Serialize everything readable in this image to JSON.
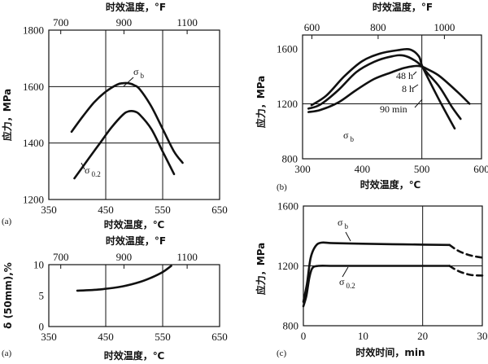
{
  "chart_data": [
    {
      "id": "a_top",
      "panel_label": "(a)",
      "type": "line",
      "xlabel": "时效温度，℃",
      "x2label": "时效温度，°F",
      "ylabel": "应力，MPa",
      "xlim": [
        350,
        650
      ],
      "xticks": [
        "350",
        "450",
        "550",
        "650"
      ],
      "x2ticks": [
        {
          "label": "700",
          "x": 371
        },
        {
          "label": "900",
          "x": 482
        },
        {
          "label": "1100",
          "x": 593
        }
      ],
      "ylim": [
        1200,
        1800
      ],
      "yticks": [
        "1200",
        "1400",
        "1600",
        "1800"
      ],
      "hgrid": [
        1400,
        1600
      ],
      "vgrid": [
        450,
        550
      ],
      "series": [
        {
          "name": "σ b",
          "name_main": "σ",
          "name_sub": "b",
          "x": [
            390,
            410,
            430,
            450,
            470,
            480,
            490,
            500,
            510,
            530,
            550,
            570,
            585
          ],
          "y": [
            1440,
            1495,
            1545,
            1582,
            1607,
            1612,
            1612,
            1605,
            1590,
            1530,
            1450,
            1370,
            1330
          ]
        },
        {
          "name": "σ 0.2",
          "name_main": "σ",
          "name_sub": "0.2",
          "x": [
            395,
            420,
            440,
            460,
            480,
            490,
            500,
            510,
            530,
            550,
            570
          ],
          "y": [
            1275,
            1345,
            1400,
            1455,
            1500,
            1512,
            1512,
            1500,
            1450,
            1370,
            1290
          ]
        }
      ]
    },
    {
      "id": "b",
      "panel_label": "(b)",
      "type": "line",
      "xlabel": "时效温度，℃",
      "x2label": "时效温度，°F",
      "ylabel": "应力，MPa",
      "xlim": [
        300,
        600
      ],
      "xticks": [
        "300",
        "400",
        "500",
        "600"
      ],
      "x2ticks": [
        {
          "label": "600",
          "x": 315.6
        },
        {
          "label": "800",
          "x": 426.7
        },
        {
          "label": "1000",
          "x": 537.8
        }
      ],
      "ylim": [
        800,
        1700
      ],
      "yticks": [
        "800",
        "1200",
        "1600"
      ],
      "hgrid": [
        1200
      ],
      "vgrid": [
        500
      ],
      "annotation": {
        "main": "σ",
        "sub": "b"
      },
      "series": [
        {
          "name": "90 min",
          "x": [
            310,
            330,
            360,
            390,
            420,
            450,
            470,
            490,
            500,
            510,
            530,
            560,
            580
          ],
          "y": [
            1140,
            1155,
            1210,
            1300,
            1380,
            1430,
            1460,
            1475,
            1470,
            1450,
            1400,
            1285,
            1200
          ]
        },
        {
          "name": "8 h",
          "x": [
            310,
            330,
            360,
            390,
            420,
            450,
            470,
            490,
            500,
            510,
            530,
            550,
            565
          ],
          "y": [
            1165,
            1195,
            1300,
            1430,
            1505,
            1545,
            1550,
            1510,
            1470,
            1420,
            1320,
            1180,
            1090
          ]
        },
        {
          "name": "48 h",
          "x": [
            315,
            340,
            370,
            400,
            430,
            460,
            480,
            495,
            500,
            510,
            530,
            555
          ],
          "y": [
            1190,
            1260,
            1400,
            1510,
            1565,
            1590,
            1595,
            1545,
            1480,
            1390,
            1220,
            1020
          ]
        }
      ]
    },
    {
      "id": "a_bottom",
      "panel_label": "(a)",
      "type": "line",
      "xlabel": "时效温度，℃",
      "x2label": "时效温度，°F",
      "ylabel": "δ (50mm),%",
      "xlim": [
        350,
        650
      ],
      "xticks": [
        "350",
        "450",
        "550",
        "650"
      ],
      "x2ticks": [
        {
          "label": "700",
          "x": 371
        },
        {
          "label": "900",
          "x": 482
        },
        {
          "label": "1100",
          "x": 593
        }
      ],
      "ylim": [
        0,
        10
      ],
      "yticks": [
        "0",
        "5",
        "10"
      ],
      "vgrid": [
        450,
        550
      ],
      "series": [
        {
          "name": "δ",
          "x": [
            400,
            440,
            480,
            510,
            530,
            550,
            565
          ],
          "y": [
            5.8,
            6.0,
            6.5,
            7.2,
            7.9,
            8.8,
            9.8
          ]
        }
      ]
    },
    {
      "id": "c",
      "panel_label": "(c)",
      "type": "line",
      "xlabel": "时效时间，min",
      "ylabel": "应力，MPa",
      "xlim": [
        0,
        30
      ],
      "xticks": [
        "0",
        "10",
        "20",
        "30"
      ],
      "ylim": [
        800,
        1600
      ],
      "yticks": [
        "800",
        "1200",
        "1600"
      ],
      "hgrid": [
        1200
      ],
      "vgrid": [
        20
      ],
      "series": [
        {
          "name": "σ b",
          "name_main": "σ",
          "name_sub": "b",
          "x": [
            0,
            0.6,
            1.2,
            2,
            3,
            5,
            10,
            15,
            20,
            24.5
          ],
          "y": [
            960,
            1080,
            1250,
            1330,
            1355,
            1352,
            1348,
            1345,
            1342,
            1340
          ],
          "dashed": {
            "x": [
              24.5,
              26,
              28,
              30
            ],
            "y": [
              1340,
              1300,
              1270,
              1255
            ]
          }
        },
        {
          "name": "σ 0.2",
          "name_main": "σ",
          "name_sub": "0.2",
          "x": [
            0,
            0.5,
            1,
            1.5,
            2.5,
            5,
            10,
            15,
            20,
            24.5
          ],
          "y": [
            930,
            1000,
            1120,
            1185,
            1200,
            1200,
            1200,
            1200,
            1200,
            1200
          ],
          "dashed": {
            "x": [
              24.5,
              26,
              28,
              30
            ],
            "y": [
              1200,
              1165,
              1140,
              1135
            ]
          }
        }
      ]
    }
  ]
}
